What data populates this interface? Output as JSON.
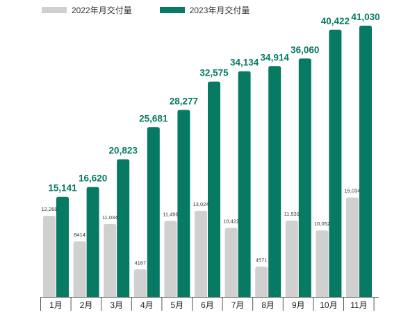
{
  "chart_data": {
    "type": "bar",
    "categories": [
      "1月",
      "2月",
      "3月",
      "4月",
      "5月",
      "6月",
      "7月",
      "8月",
      "9月",
      "10月",
      "11月"
    ],
    "series": [
      {
        "name": "2022年月交付量",
        "color": "#d0d0d0",
        "values": [
          12268,
          8414,
          11034,
          4167,
          11496,
          13024,
          10422,
          4571,
          11531,
          10052,
          15034
        ],
        "labels": [
          "12,268",
          "8414",
          "11,034",
          "4167",
          "11,496",
          "13,024",
          "10,422",
          "4571",
          "11,531",
          "10,052",
          "15,034"
        ]
      },
      {
        "name": "2023年月交付量",
        "color": "#067a62",
        "values": [
          15141,
          16620,
          20823,
          25681,
          28277,
          32575,
          34134,
          34914,
          36060,
          40422,
          41030
        ],
        "labels": [
          "15,141",
          "16,620",
          "20,823",
          "25,681",
          "28,277",
          "32,575",
          "34,134",
          "34,914",
          "36,060",
          "40,422",
          "41,030"
        ]
      }
    ],
    "ylim": [
      0,
      41030
    ],
    "legend": "top-left",
    "grid": false
  }
}
